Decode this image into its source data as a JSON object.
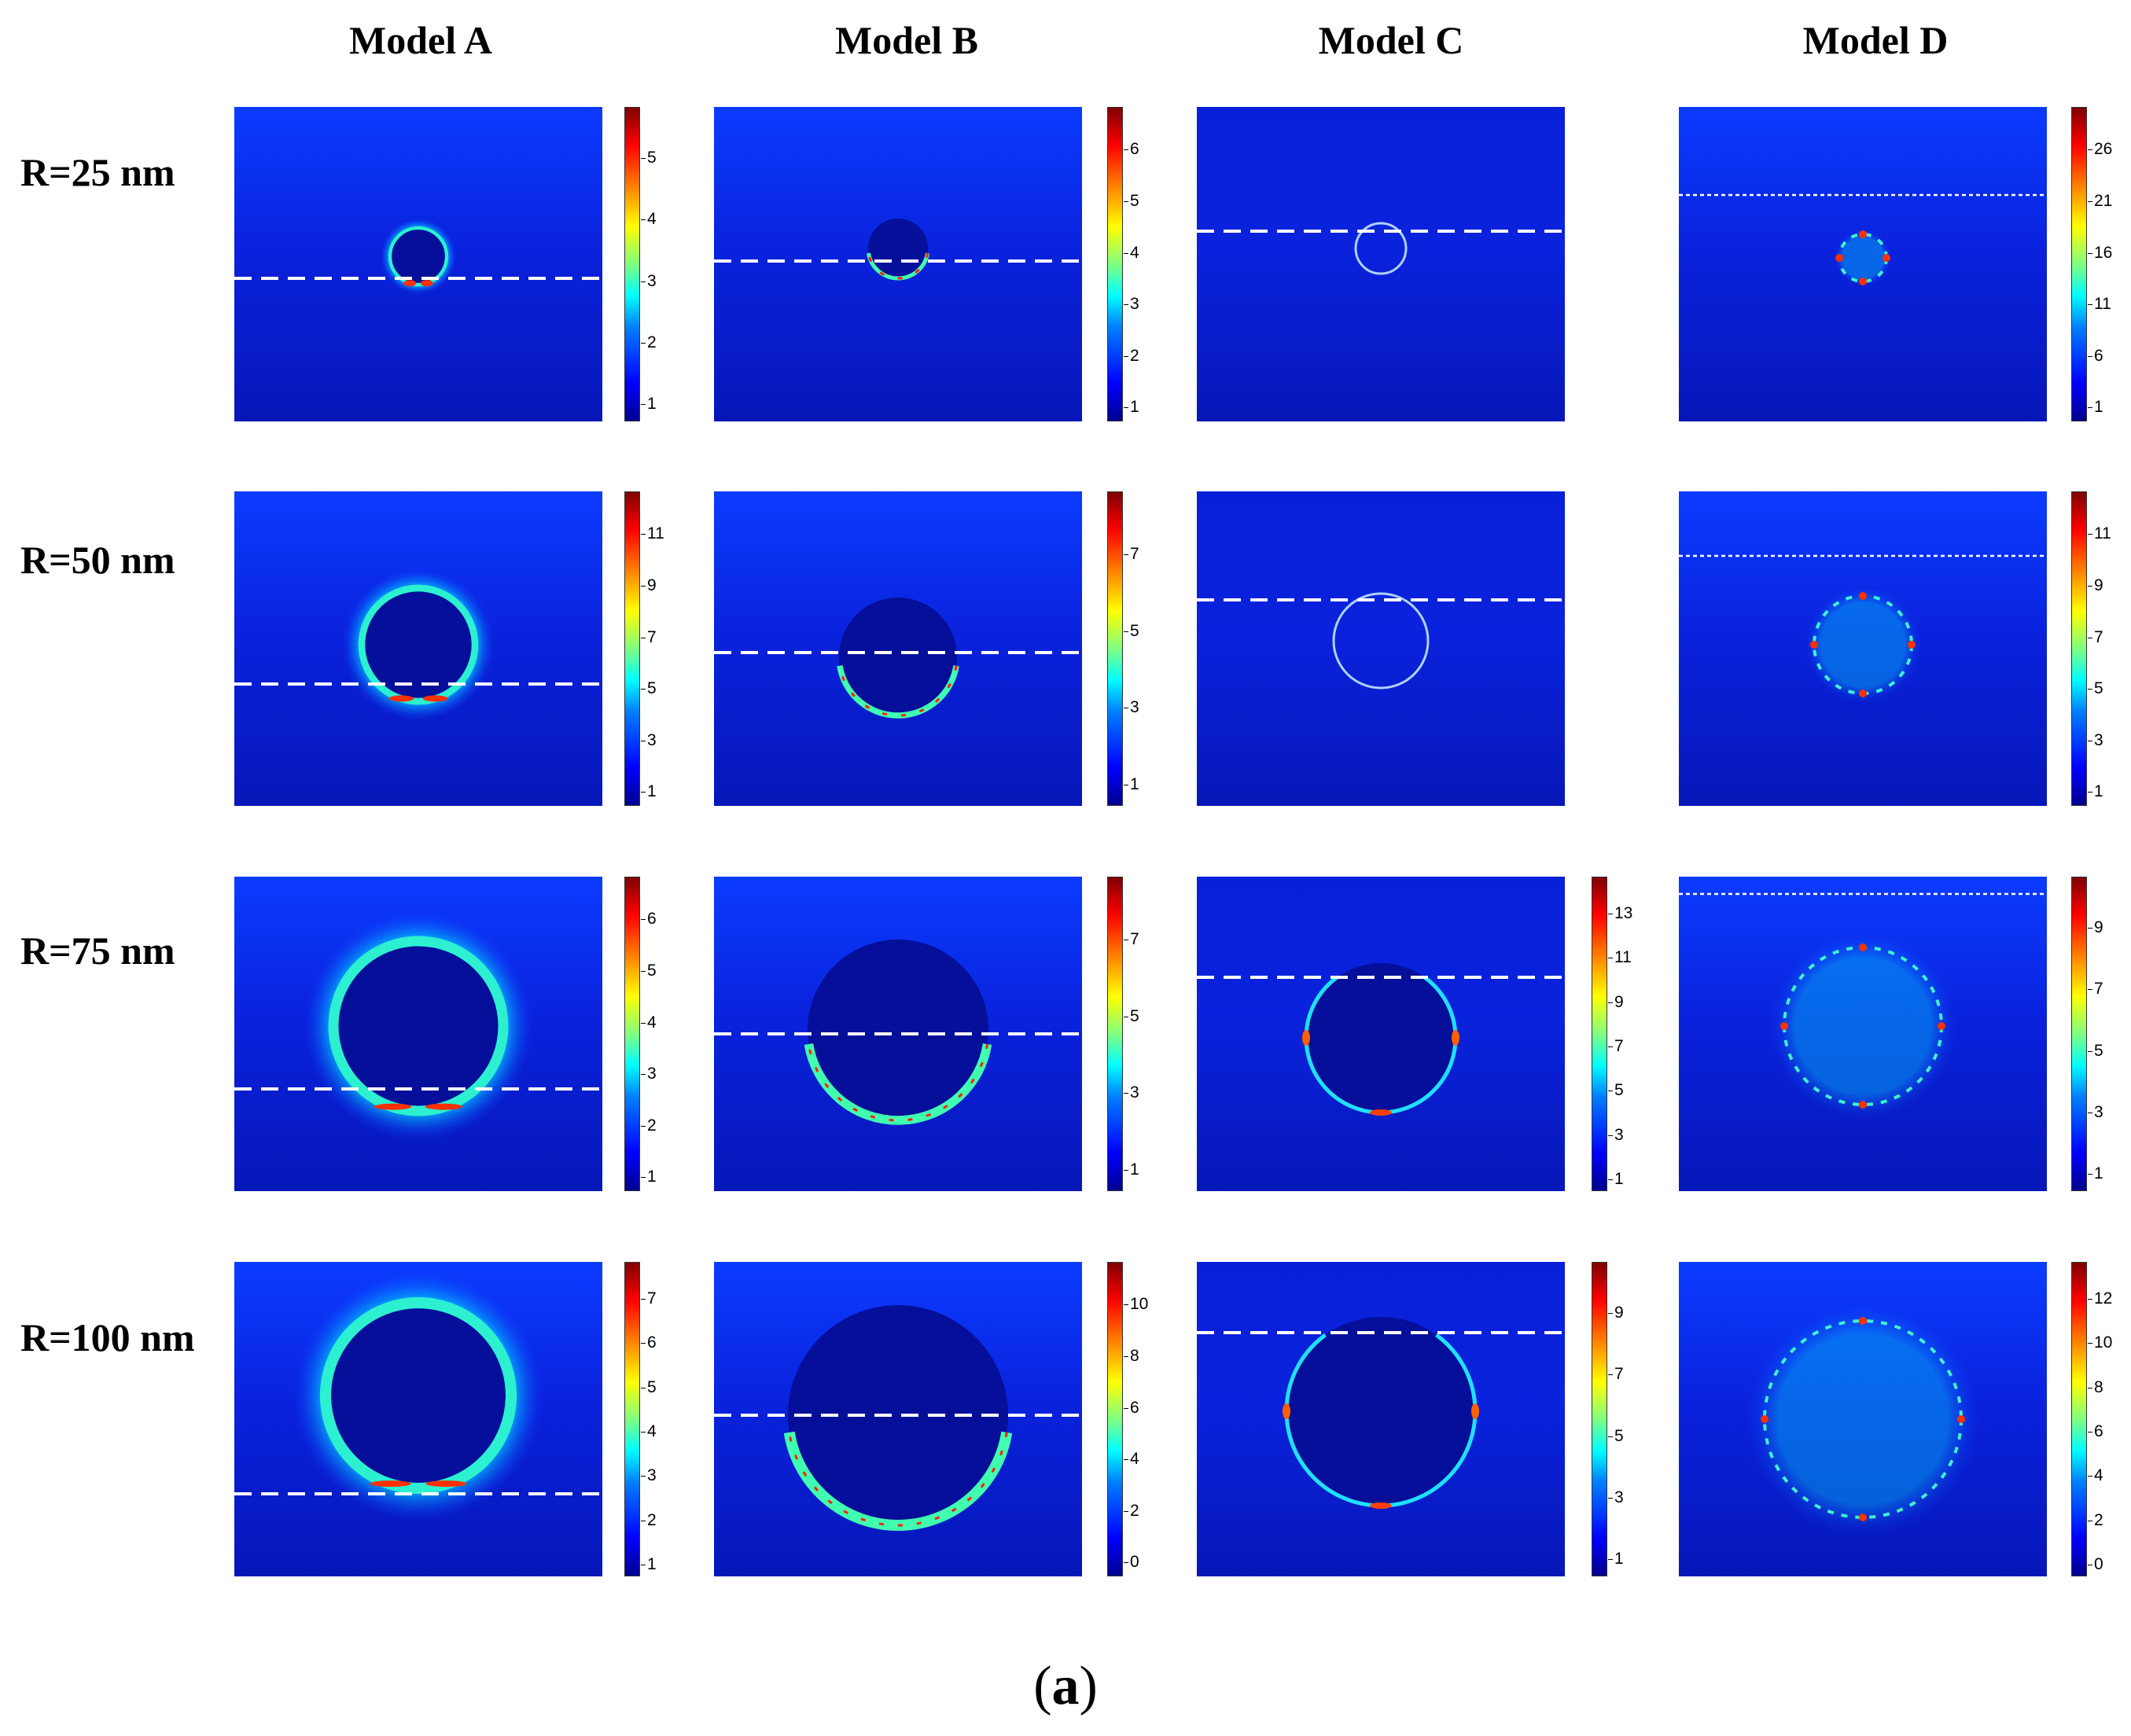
{
  "columns": [
    "Model A",
    "Model B",
    "Model C",
    "Model D"
  ],
  "rows": [
    "R=25 nm",
    "R=50 nm",
    "R=75 nm",
    "R=100 nm"
  ],
  "caption": {
    "open": "(",
    "letter": "a",
    "close": ")"
  },
  "colormap": [
    "#00008f",
    "#0000ff",
    "#0080ff",
    "#00ffff",
    "#80ff80",
    "#ffff00",
    "#ff8000",
    "#ff0000",
    "#800000"
  ],
  "colorbars": [
    [
      [
        "1",
        "2",
        "3",
        "4",
        "5"
      ],
      [
        "1",
        "2",
        "3",
        "4",
        "5",
        "6"
      ],
      null,
      [
        "1",
        "6",
        "11",
        "16",
        "21",
        "26"
      ]
    ],
    [
      [
        "1",
        "3",
        "5",
        "7",
        "9",
        "11"
      ],
      [
        "1",
        "3",
        "5",
        "7"
      ],
      null,
      [
        "1",
        "3",
        "5",
        "7",
        "9",
        "11"
      ]
    ],
    [
      [
        "1",
        "2",
        "3",
        "4",
        "5",
        "6"
      ],
      [
        "1",
        "3",
        "5",
        "7"
      ],
      [
        "1",
        "3",
        "5",
        "7",
        "9",
        "11",
        "13"
      ],
      [
        "1",
        "3",
        "5",
        "7",
        "9"
      ]
    ],
    [
      [
        "1",
        "2",
        "3",
        "4",
        "5",
        "6",
        "7"
      ],
      [
        "0",
        "2",
        "4",
        "6",
        "8",
        "10"
      ],
      [
        "1",
        "3",
        "5",
        "7",
        "9"
      ],
      [
        "0",
        "2",
        "4",
        "6",
        "8",
        "10",
        "12"
      ]
    ]
  ]
}
